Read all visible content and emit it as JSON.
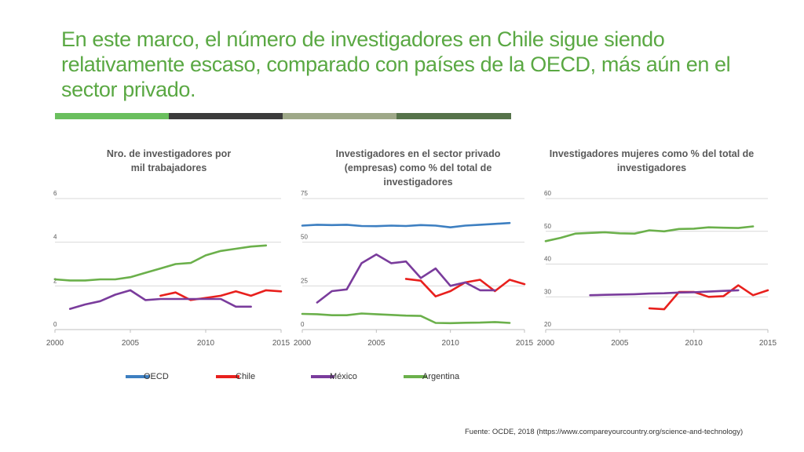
{
  "slide": {
    "title": "En este marco, el número de investigadores en Chile sigue siendo relativamente escaso, comparado con países de la OECD, más aún en el sector privado.",
    "source": "Fuente:  OCDE, 2018  (https://www.compareyourcountry.org/science-and-technology)",
    "bar_colors": [
      "#6abf5e",
      "#3c3c3c",
      "#9ea888",
      "#56734a"
    ]
  },
  "legend": [
    {
      "name": "OECD",
      "color": "#3d7fc1"
    },
    {
      "name": "Chile",
      "color": "#e8201d"
    },
    {
      "name": "México",
      "color": "#7a3c9c"
    },
    {
      "name": "Argentina",
      "color": "#6bb04b"
    }
  ],
  "chart_data": [
    {
      "type": "line",
      "title": "Nro. de investigadores por mil trabajadores",
      "xticks": [
        "2000",
        "2005",
        "2010",
        "2015"
      ],
      "yticks": [
        "0",
        "2",
        "4",
        "6"
      ],
      "xlim": [
        2000,
        2015
      ],
      "ylim": [
        0,
        6
      ],
      "grid": true,
      "series": [
        {
          "name": "Chile",
          "color": "#e8201d",
          "points": [
            [
              2007,
              1.55
            ],
            [
              2008,
              1.7
            ],
            [
              2009,
              1.35
            ],
            [
              2010,
              1.45
            ],
            [
              2011,
              1.55
            ],
            [
              2012,
              1.75
            ],
            [
              2013,
              1.55
            ],
            [
              2014,
              1.8
            ],
            [
              2015,
              1.75
            ]
          ]
        },
        {
          "name": "México",
          "color": "#7a3c9c",
          "points": [
            [
              2001,
              0.95
            ],
            [
              2002,
              1.15
            ],
            [
              2003,
              1.3
            ],
            [
              2004,
              1.6
            ],
            [
              2005,
              1.8
            ],
            [
              2006,
              1.35
            ],
            [
              2007,
              1.4
            ],
            [
              2008,
              1.4
            ],
            [
              2009,
              1.4
            ],
            [
              2010,
              1.4
            ],
            [
              2011,
              1.4
            ],
            [
              2012,
              1.05
            ],
            [
              2013,
              1.05
            ]
          ]
        },
        {
          "name": "Argentina",
          "color": "#6bb04b",
          "points": [
            [
              2000,
              2.3
            ],
            [
              2001,
              2.25
            ],
            [
              2002,
              2.25
            ],
            [
              2003,
              2.3
            ],
            [
              2004,
              2.3
            ],
            [
              2005,
              2.4
            ],
            [
              2006,
              2.6
            ],
            [
              2007,
              2.8
            ],
            [
              2008,
              3.0
            ],
            [
              2009,
              3.05
            ],
            [
              2010,
              3.4
            ],
            [
              2011,
              3.6
            ],
            [
              2012,
              3.7
            ],
            [
              2013,
              3.8
            ],
            [
              2014,
              3.85
            ]
          ]
        }
      ]
    },
    {
      "type": "line",
      "title": "Investigadores en el sector privado (empresas) como % del total de investigadores",
      "xticks": [
        "2000",
        "2005",
        "2010",
        "2015"
      ],
      "yticks": [
        "0",
        "25",
        "50",
        "75"
      ],
      "xlim": [
        2000,
        2015
      ],
      "ylim": [
        0,
        75
      ],
      "grid": true,
      "series": [
        {
          "name": "OECD",
          "color": "#3d7fc1",
          "points": [
            [
              2000,
              59.5
            ],
            [
              2001,
              60
            ],
            [
              2002,
              59.8
            ],
            [
              2003,
              60
            ],
            [
              2004,
              59.3
            ],
            [
              2005,
              59.2
            ],
            [
              2006,
              59.5
            ],
            [
              2007,
              59.3
            ],
            [
              2008,
              59.8
            ],
            [
              2009,
              59.5
            ],
            [
              2010,
              58.5
            ],
            [
              2011,
              59.5
            ],
            [
              2012,
              60
            ],
            [
              2013,
              60.5
            ],
            [
              2014,
              61
            ]
          ]
        },
        {
          "name": "Chile",
          "color": "#e8201d",
          "points": [
            [
              2007,
              29
            ],
            [
              2008,
              28
            ],
            [
              2009,
              19
            ],
            [
              2010,
              22
            ],
            [
              2011,
              27
            ],
            [
              2012,
              28.5
            ],
            [
              2013,
              22
            ],
            [
              2014,
              28.5
            ],
            [
              2015,
              26
            ]
          ]
        },
        {
          "name": "México",
          "color": "#7a3c9c",
          "points": [
            [
              2001,
              15.5
            ],
            [
              2002,
              22
            ],
            [
              2003,
              23
            ],
            [
              2004,
              38
            ],
            [
              2005,
              43
            ],
            [
              2006,
              38
            ],
            [
              2007,
              39
            ],
            [
              2008,
              29.5
            ],
            [
              2009,
              35
            ],
            [
              2010,
              25
            ],
            [
              2011,
              27
            ],
            [
              2012,
              22.5
            ],
            [
              2013,
              22.5
            ]
          ]
        },
        {
          "name": "Argentina",
          "color": "#6bb04b",
          "points": [
            [
              2000,
              9
            ],
            [
              2001,
              8.8
            ],
            [
              2002,
              8.2
            ],
            [
              2003,
              8.2
            ],
            [
              2004,
              9.2
            ],
            [
              2005,
              8.8
            ],
            [
              2006,
              8.4
            ],
            [
              2007,
              8
            ],
            [
              2008,
              7.8
            ],
            [
              2009,
              3.8
            ],
            [
              2010,
              3.7
            ],
            [
              2011,
              3.9
            ],
            [
              2012,
              4
            ],
            [
              2013,
              4.3
            ],
            [
              2014,
              3.8
            ]
          ]
        }
      ]
    },
    {
      "type": "line",
      "title": "Investigadores mujeres como % del total de investigadores",
      "xticks": [
        "2000",
        "2005",
        "2010",
        "2015"
      ],
      "yticks": [
        "20",
        "30",
        "40",
        "50",
        "60"
      ],
      "xlim": [
        2000,
        2015
      ],
      "ylim": [
        20,
        60
      ],
      "grid": true,
      "series": [
        {
          "name": "Chile",
          "color": "#e8201d",
          "points": [
            [
              2007,
              26.5
            ],
            [
              2008,
              26.2
            ],
            [
              2009,
              31.5
            ],
            [
              2010,
              31.5
            ],
            [
              2011,
              30
            ],
            [
              2012,
              30.2
            ],
            [
              2013,
              33.5
            ],
            [
              2014,
              30.5
            ],
            [
              2015,
              32
            ]
          ]
        },
        {
          "name": "México",
          "color": "#7a3c9c",
          "points": [
            [
              2003,
              30.5
            ],
            [
              2004,
              30.6
            ],
            [
              2005,
              30.7
            ],
            [
              2006,
              30.8
            ],
            [
              2007,
              31
            ],
            [
              2008,
              31.1
            ],
            [
              2009,
              31.3
            ],
            [
              2010,
              31.4
            ],
            [
              2011,
              31.6
            ],
            [
              2012,
              31.8
            ],
            [
              2013,
              32
            ]
          ]
        },
        {
          "name": "Argentina",
          "color": "#6bb04b",
          "points": [
            [
              2000,
              47
            ],
            [
              2001,
              48
            ],
            [
              2002,
              49.3
            ],
            [
              2003,
              49.5
            ],
            [
              2004,
              49.7
            ],
            [
              2005,
              49.4
            ],
            [
              2006,
              49.3
            ],
            [
              2007,
              50.3
            ],
            [
              2008,
              50
            ],
            [
              2009,
              50.7
            ],
            [
              2010,
              50.8
            ],
            [
              2011,
              51.2
            ],
            [
              2012,
              51.1
            ],
            [
              2013,
              51
            ],
            [
              2014,
              51.5
            ]
          ]
        }
      ]
    }
  ]
}
